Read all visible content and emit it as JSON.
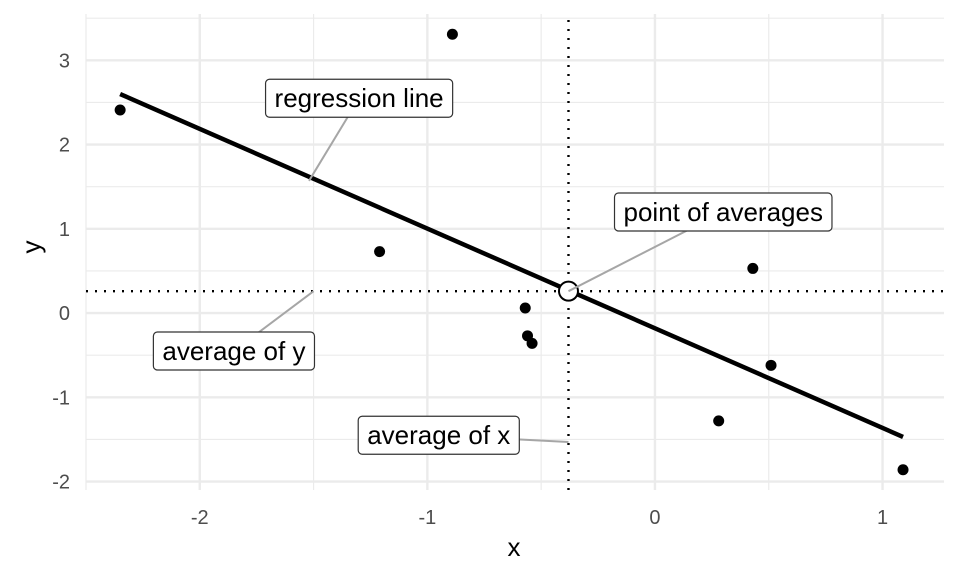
{
  "chart_data": {
    "type": "scatter",
    "title": "",
    "xlabel": "x",
    "ylabel": "y",
    "xlim": [
      -2.5,
      1.27
    ],
    "ylim": [
      -2.1,
      3.55
    ],
    "x_ticks": [
      -2,
      -1,
      0,
      1
    ],
    "x_tick_labels": [
      "-2",
      "-1",
      "0",
      "1"
    ],
    "y_ticks": [
      -2,
      -1,
      0,
      1,
      2,
      3
    ],
    "y_tick_labels": [
      "-2",
      "-1",
      "0",
      "1",
      "2",
      "3"
    ],
    "grid": true,
    "points": [
      {
        "x": -2.35,
        "y": 2.41
      },
      {
        "x": -0.89,
        "y": 3.31
      },
      {
        "x": -1.21,
        "y": 0.73
      },
      {
        "x": -0.57,
        "y": 0.06
      },
      {
        "x": -0.56,
        "y": -0.27
      },
      {
        "x": -0.54,
        "y": -0.36
      },
      {
        "x": 0.43,
        "y": 0.53
      },
      {
        "x": 0.51,
        "y": -0.62
      },
      {
        "x": 0.28,
        "y": -1.28
      },
      {
        "x": 1.09,
        "y": -1.86
      }
    ],
    "mean_x": -0.38,
    "mean_y": 0.26,
    "regression_line": {
      "x1": -2.35,
      "y1": 2.6,
      "x2": 1.09,
      "y2": -1.47
    },
    "annotations": [
      {
        "text": "regression line",
        "label_x": -1.3,
        "label_y": 2.55,
        "target_x": -1.52,
        "target_y": 1.57
      },
      {
        "text": "point of averages",
        "label_x": 0.3,
        "label_y": 1.2,
        "target_x": -0.38,
        "target_y": 0.26
      },
      {
        "text": "average of y",
        "label_x": -1.85,
        "label_y": -0.45,
        "target_x": -1.5,
        "target_y": 0.26
      },
      {
        "text": "average of x",
        "label_x": -0.95,
        "label_y": -1.45,
        "target_x": -0.38,
        "target_y": -1.53
      }
    ],
    "colors": {
      "points": "#000000",
      "line": "#000000",
      "grid": "#ebebeb",
      "connector": "#a6a6a6",
      "label_border": "#333333",
      "label_fill": "#ffffff"
    }
  }
}
